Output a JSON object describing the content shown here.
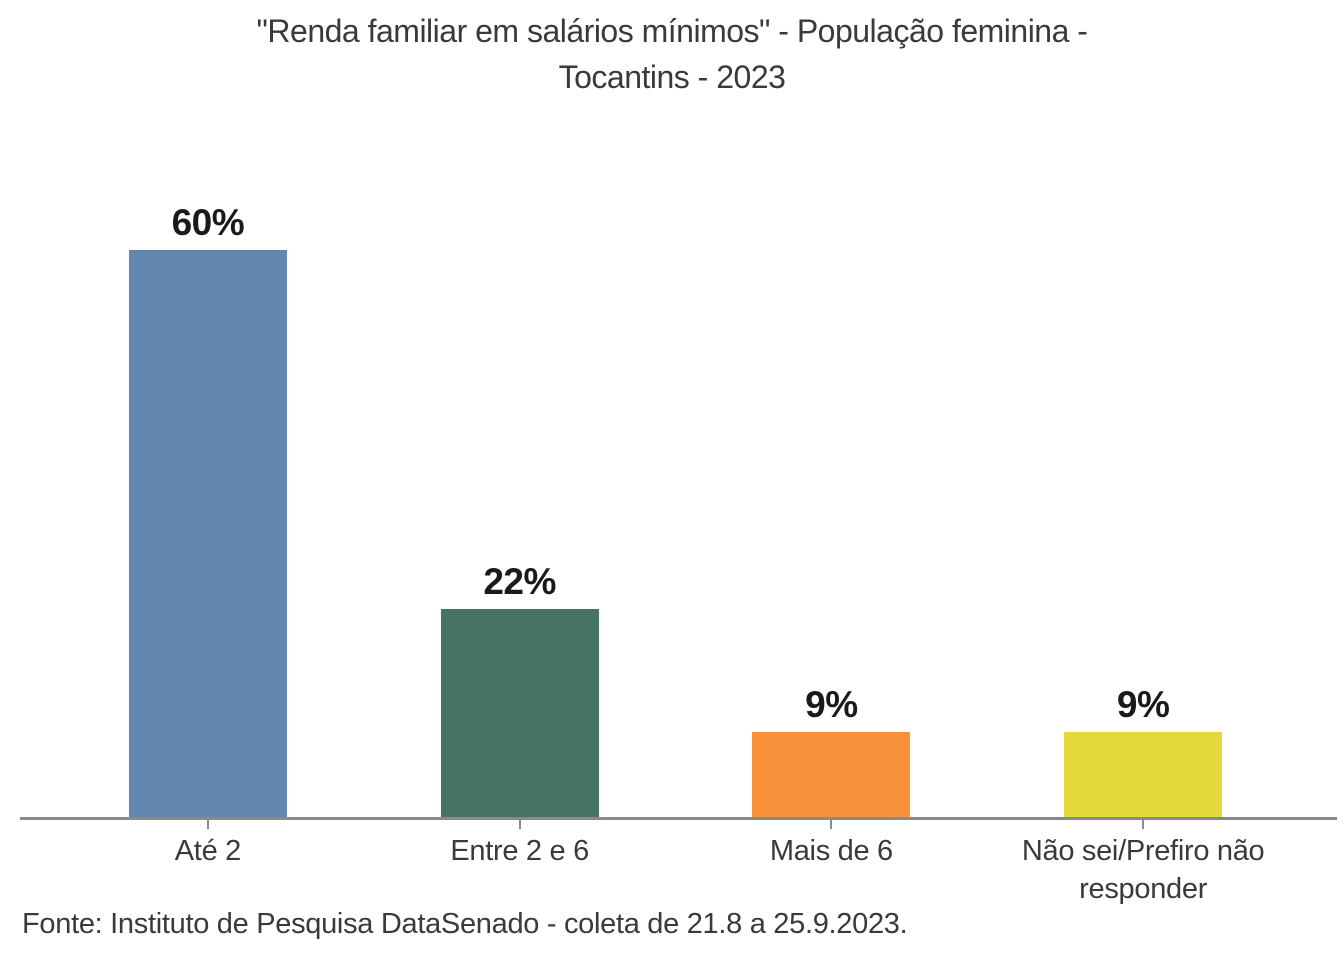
{
  "title_lines": [
    "\"Renda familiar em salários mínimos\" - População feminina -",
    "Tocantins - 2023"
  ],
  "source": "Fonte: Instituto de Pesquisa DataSenado - coleta de 21.8 a 25.9.2023.",
  "chart_data": {
    "type": "bar",
    "title": "\"Renda familiar em salários mínimos\" - População feminina - Tocantins - 2023",
    "categories": [
      "Até 2",
      "Entre 2 e 6",
      "Mais de 6",
      "Não sei/Prefiro não responder"
    ],
    "values": [
      60,
      22,
      9,
      9
    ],
    "value_labels": [
      "60%",
      "22%",
      "9%",
      "9%"
    ],
    "bar_colors": [
      "#6388af",
      "#477363",
      "#f9923a",
      "#e4d83b"
    ],
    "xlabel": "",
    "ylabel": "",
    "ylim": [
      0,
      66
    ],
    "grid": false,
    "legend": "none",
    "annotation": "Fonte: Instituto de Pesquisa DataSenado - coleta de 21.8 a 25.9.2023."
  },
  "colors": {
    "background": "#ffffff",
    "axis": "#8a8a8a",
    "text": "#3a3a3a",
    "value_label": "#1a1a1a"
  }
}
